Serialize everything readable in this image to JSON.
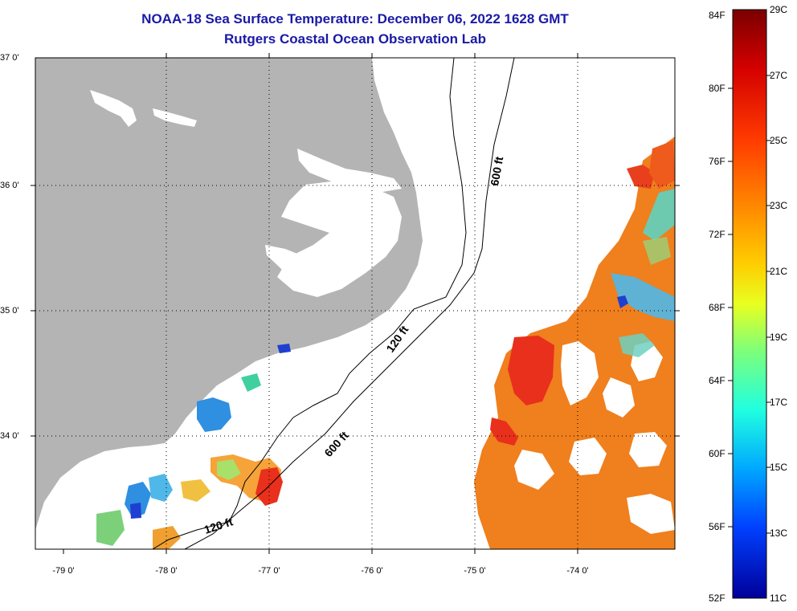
{
  "title_line1": "NOAA-18 Sea Surface Temperature:  December 06, 2022 1628 GMT",
  "title_line2": "Rutgers Coastal Ocean Observation Lab",
  "lat_labels": [
    "37 0'",
    "36 0'",
    "35 0'",
    "34 0'"
  ],
  "lon_labels": [
    "-79 0'",
    "-78 0'",
    "-77 0'",
    "-76 0'",
    "-75 0'",
    "-74 0'"
  ],
  "contour_labels": [
    "600 ft",
    "120 ft",
    "600 ft",
    "120 ft"
  ],
  "colorbar": {
    "fahrenheit": [
      "84F",
      "80F",
      "76F",
      "72F",
      "68F",
      "64F",
      "60F",
      "56F",
      "52F"
    ],
    "celsius": [
      "29C",
      "27C",
      "25C",
      "23C",
      "21C",
      "19C",
      "17C",
      "15C",
      "13C",
      "11C"
    ],
    "colors": [
      "#7a0000",
      "#d40000",
      "#ff3a00",
      "#ff8c00",
      "#ffcc00",
      "#e8ff20",
      "#7dff7a",
      "#20ffe0",
      "#00a8ff",
      "#0040ff",
      "#00009a"
    ]
  },
  "colors": {
    "land": "#b4b4b4",
    "title": "#1a1aa6",
    "warm": "#f07f1d",
    "hot": "#e8301c",
    "cool": "#2f8fe0"
  }
}
